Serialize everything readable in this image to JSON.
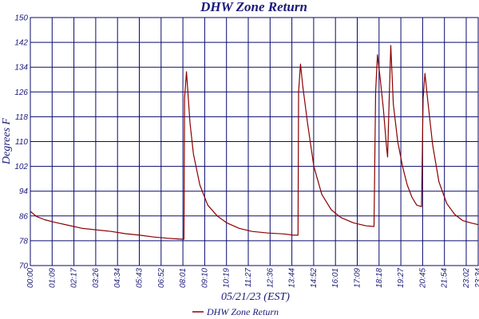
{
  "chart_data": {
    "type": "line",
    "title": "DHW Zone Return",
    "xlabel": "05/21/23 (EST)",
    "ylabel": "Degrees F",
    "xlim": [
      "00:00",
      "23:34"
    ],
    "ylim": [
      70,
      150
    ],
    "grid": true,
    "legend_position": "bottom-center",
    "x_tick_labels": [
      "00:00",
      "01:09",
      "02:17",
      "03:26",
      "04:34",
      "05:43",
      "06:52",
      "08:01",
      "09:10",
      "10:19",
      "11:27",
      "12:36",
      "13:44",
      "14:52",
      "16:01",
      "17:09",
      "18:18",
      "19:27",
      "20:45",
      "21:54",
      "23:02",
      "23:34"
    ],
    "y_ticks": [
      70,
      78,
      86,
      94,
      102,
      110,
      118,
      126,
      134,
      142,
      150
    ],
    "colors": {
      "series": "#8b0000",
      "grid": "#0a0a6e",
      "text": "#1a1a7a"
    },
    "series": [
      {
        "name": "DHW Zone Return",
        "x": [
          "00:00",
          "00:20",
          "00:45",
          "01:15",
          "02:00",
          "02:45",
          "03:30",
          "04:15",
          "05:00",
          "05:45",
          "06:30",
          "07:15",
          "07:45",
          "08:05",
          "08:07",
          "08:13",
          "08:18",
          "08:24",
          "08:35",
          "08:55",
          "09:20",
          "09:50",
          "10:20",
          "11:00",
          "11:40",
          "12:30",
          "13:20",
          "13:50",
          "14:05",
          "14:07",
          "14:13",
          "14:20",
          "14:35",
          "14:55",
          "15:20",
          "15:50",
          "16:20",
          "17:00",
          "17:40",
          "18:05",
          "18:10",
          "18:16",
          "18:25",
          "18:35",
          "18:44",
          "18:48",
          "18:52",
          "18:58",
          "19:06",
          "19:20",
          "19:35",
          "19:50",
          "20:05",
          "20:20",
          "20:35",
          "20:40",
          "20:46",
          "20:55",
          "21:10",
          "21:30",
          "21:55",
          "22:20",
          "22:45",
          "23:10",
          "23:34"
        ],
        "values": [
          87.5,
          85.8,
          84.8,
          84.0,
          83.0,
          82.0,
          81.5,
          81.0,
          80.3,
          79.8,
          79.2,
          78.8,
          78.6,
          78.5,
          124.0,
          132.5,
          125.0,
          116.0,
          106.0,
          96.0,
          89.5,
          86.0,
          83.8,
          82.0,
          81.0,
          80.5,
          80.2,
          79.8,
          79.8,
          126.0,
          135.0,
          128.0,
          116.0,
          102.0,
          93.0,
          88.0,
          85.5,
          83.8,
          82.8,
          82.6,
          126.0,
          138.0,
          130.0,
          120.0,
          109.0,
          105.0,
          120.0,
          141.0,
          122.0,
          110.0,
          102.0,
          96.0,
          92.0,
          89.5,
          89.0,
          124.0,
          132.0,
          123.0,
          109.0,
          97.0,
          90.0,
          86.5,
          84.5,
          83.8,
          83.2
        ]
      }
    ]
  }
}
